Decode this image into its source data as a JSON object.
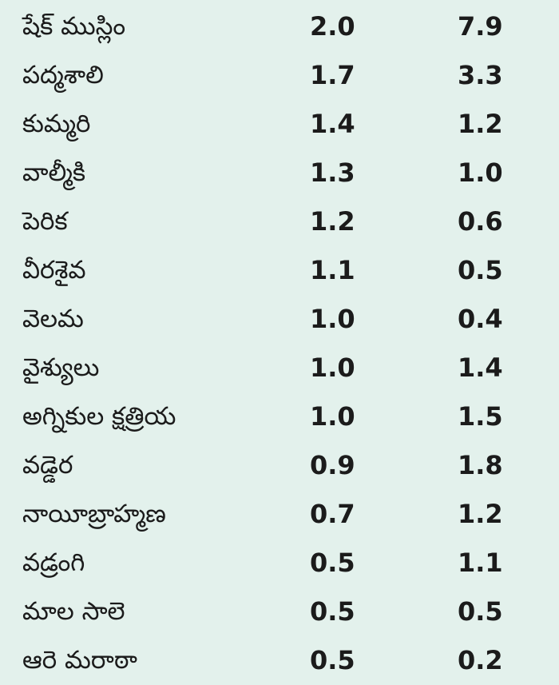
{
  "rows": [
    {
      "name": "షేక్ ముస్లిం",
      "v1": "2.0",
      "v2": "7.9"
    },
    {
      "name": "పద్మశాలి",
      "v1": "1.7",
      "v2": "3.3"
    },
    {
      "name": "కుమ్మరి",
      "v1": "1.4",
      "v2": "1.2"
    },
    {
      "name": "వాల్మీకి",
      "v1": "1.3",
      "v2": "1.0"
    },
    {
      "name": "పెరిక",
      "v1": "1.2",
      "v2": "0.6"
    },
    {
      "name": "వీరశైవ",
      "v1": "1.1",
      "v2": "0.5"
    },
    {
      "name": "వెలమ",
      "v1": "1.0",
      "v2": "0.4"
    },
    {
      "name": "వైశ్యులు",
      "v1": "1.0",
      "v2": "1.4"
    },
    {
      "name": "అగ్నికుల క్షత్రియ",
      "v1": "1.0",
      "v2": "1.5"
    },
    {
      "name": "వడ్డెర",
      "v1": "0.9",
      "v2": "1.8"
    },
    {
      "name": "నాయీబ్రాహ్మణ",
      "v1": "0.7",
      "v2": "1.2"
    },
    {
      "name": "వడ్రంగి",
      "v1": "0.5",
      "v2": "1.1"
    },
    {
      "name": "మాల సాలె",
      "v1": "0.5",
      "v2": "0.5"
    },
    {
      "name": "ఆరె మరాఠా",
      "v1": "0.5",
      "v2": "0.2"
    }
  ],
  "colors": {
    "background": "#e3f1ec",
    "text": "#1b1b1b"
  }
}
